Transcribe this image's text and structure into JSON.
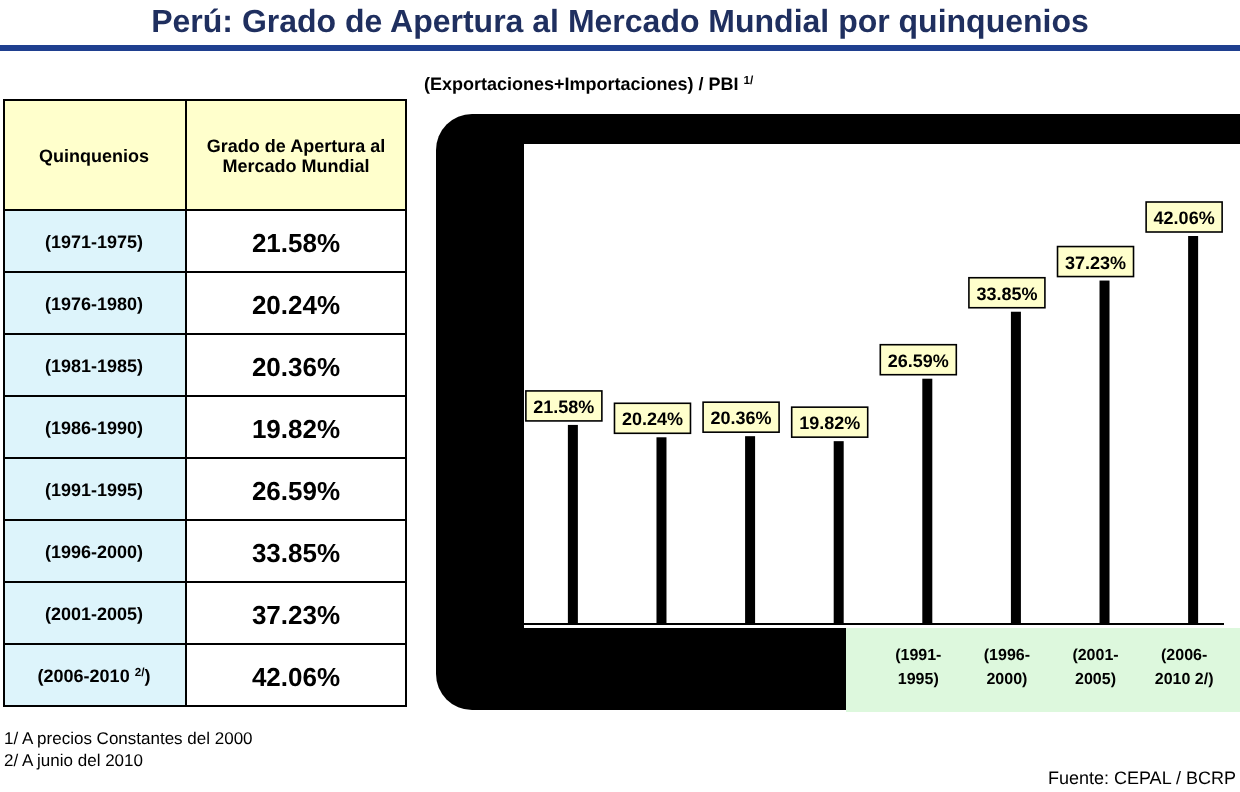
{
  "chart_data": {
    "type": "bar",
    "title": "Perú: Grado de Apertura al Mercado Mundial por quinquenios",
    "subtitle": "(Exportaciones+Importaciones) / PBI $^{1/}$",
    "categories": [
      null,
      null,
      null,
      null,
      "(1991-1995)",
      "(1996-2000)",
      "(2001-2005)",
      "(2006-2010 2/)"
    ],
    "values": [
      21.58,
      20.24,
      20.36,
      19.82,
      26.59,
      33.85,
      37.23,
      42.06
    ],
    "value_labels": [
      "21.58%",
      "20.24%",
      "20.36%",
      "19.82%",
      "26.59%",
      "33.85%",
      "37.23%",
      "42.06%"
    ],
    "color": "#000000",
    "annotations": [
      "Quinquenios",
      "Grado de Apertura al Mercado Mundial",
      "(1971-1975)",
      "(1976-1980)",
      "(1981-1985)",
      "(1986-1990)",
      "(1991-1995)",
      "(1996-2000)",
      "(2001-2005)",
      "(2006-2010 $^{2/}$)",
      "1/ A precios Constantes del 2000",
      "2/ A junio del 2010",
      "Fuente: CEPAL / BCRP"
    ]
  }
}
